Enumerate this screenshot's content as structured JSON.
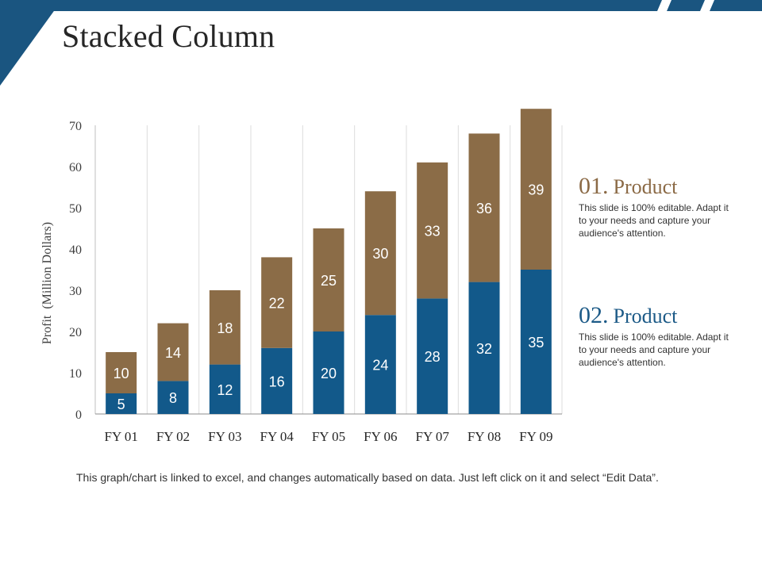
{
  "title": "Stacked Column",
  "colors": {
    "accent_blue": "#1c5a87",
    "accent_brown": "#8b6a46",
    "top_bar": "#1a5580"
  },
  "legend": [
    {
      "num": "01.",
      "name": "Product",
      "desc": "This slide is 100% editable. Adapt it to your needs and capture your audience's attention."
    },
    {
      "num": "02.",
      "name": "Product",
      "desc": "This slide is 100% editable. Adapt it to your needs and capture your audience's attention."
    }
  ],
  "footnote": "This graph/chart is linked to excel, and changes automatically based on data. Just left click on it and select “Edit Data”.",
  "chart_data": {
    "type": "bar",
    "stacked": true,
    "title": "",
    "xlabel": "",
    "ylabel": "Profit  (Million Dollars)",
    "ylim": [
      0,
      70
    ],
    "yticks": [
      0,
      10,
      20,
      30,
      40,
      50,
      60,
      70
    ],
    "categories": [
      "FY 01",
      "FY 02",
      "FY 03",
      "FY 04",
      "FY 05",
      "FY 06",
      "FY 07",
      "FY 08",
      "FY 09"
    ],
    "series": [
      {
        "name": "Series 1",
        "color": "#12598a",
        "values": [
          5,
          8,
          12,
          16,
          20,
          24,
          28,
          32,
          35
        ]
      },
      {
        "name": "Series 2",
        "color": "#8b6c47",
        "values": [
          10,
          14,
          18,
          22,
          25,
          30,
          33,
          36,
          39
        ]
      }
    ]
  }
}
